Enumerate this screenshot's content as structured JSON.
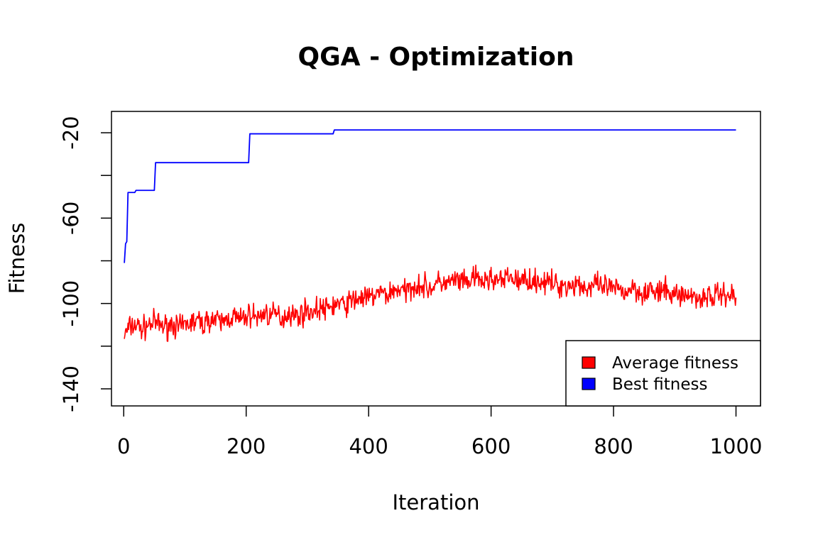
{
  "chart_data": {
    "type": "line",
    "title": "QGA - Optimization",
    "xlabel": "Iteration",
    "ylabel": "Fitness",
    "xlim": [
      -20,
      1040
    ],
    "ylim": [
      -148,
      -10
    ],
    "xticks": [
      0,
      200,
      400,
      600,
      800,
      1000
    ],
    "yticks": [
      -20,
      -40,
      -60,
      -80,
      -100,
      -120,
      -140
    ],
    "ytick_labels": [
      "-20",
      "",
      "-60",
      "",
      "-100",
      "",
      "-140"
    ],
    "legend_position": "bottom-right",
    "series": [
      {
        "name": "Average fitness",
        "color": "#ff0000",
        "x": [
          1,
          10,
          20,
          30,
          40,
          50,
          60,
          70,
          80,
          90,
          100,
          110,
          120,
          130,
          140,
          150,
          160,
          170,
          180,
          190,
          200,
          210,
          220,
          230,
          240,
          250,
          260,
          270,
          280,
          290,
          300,
          310,
          320,
          330,
          340,
          350,
          360,
          370,
          380,
          390,
          400,
          410,
          420,
          430,
          440,
          450,
          460,
          470,
          480,
          490,
          500,
          510,
          520,
          530,
          540,
          550,
          560,
          570,
          580,
          590,
          600,
          610,
          620,
          630,
          640,
          650,
          660,
          670,
          680,
          690,
          700,
          710,
          720,
          730,
          740,
          750,
          760,
          770,
          780,
          790,
          800,
          810,
          820,
          830,
          840,
          850,
          860,
          870,
          880,
          890,
          900,
          910,
          920,
          930,
          940,
          950,
          960,
          970,
          980,
          990,
          1000
        ],
        "y": [
          -115,
          -111,
          -110,
          -112,
          -110,
          -109,
          -110,
          -111,
          -109,
          -112,
          -110,
          -109,
          -108,
          -110,
          -107,
          -108,
          -109,
          -107,
          -106,
          -108,
          -106,
          -105,
          -107,
          -104,
          -106,
          -105,
          -107,
          -104,
          -106,
          -105,
          -103,
          -104,
          -102,
          -103,
          -101,
          -100,
          -101,
          -99,
          -98,
          -97,
          -98,
          -96,
          -95,
          -96,
          -94,
          -93,
          -95,
          -92,
          -91,
          -92,
          -93,
          -91,
          -90,
          -91,
          -89,
          -90,
          -91,
          -88,
          -89,
          -90,
          -88,
          -89,
          -90,
          -87,
          -89,
          -90,
          -88,
          -90,
          -89,
          -91,
          -90,
          -92,
          -91,
          -92,
          -90,
          -92,
          -93,
          -91,
          -93,
          -92,
          -94,
          -93,
          -95,
          -92,
          -94,
          -95,
          -93,
          -96,
          -94,
          -95,
          -96,
          -95,
          -97,
          -96,
          -98,
          -96,
          -97,
          -96,
          -95,
          -96,
          -97
        ]
      },
      {
        "name": "Best fitness",
        "color": "#0000ff",
        "x": [
          1,
          3,
          5,
          7,
          18,
          20,
          50,
          52,
          204,
          206,
          342,
          344,
          1000
        ],
        "y": [
          -81,
          -72,
          -71,
          -48,
          -48,
          -47,
          -47,
          -34,
          -34,
          -20.5,
          -20.5,
          -18.7,
          -18.7
        ]
      }
    ]
  }
}
